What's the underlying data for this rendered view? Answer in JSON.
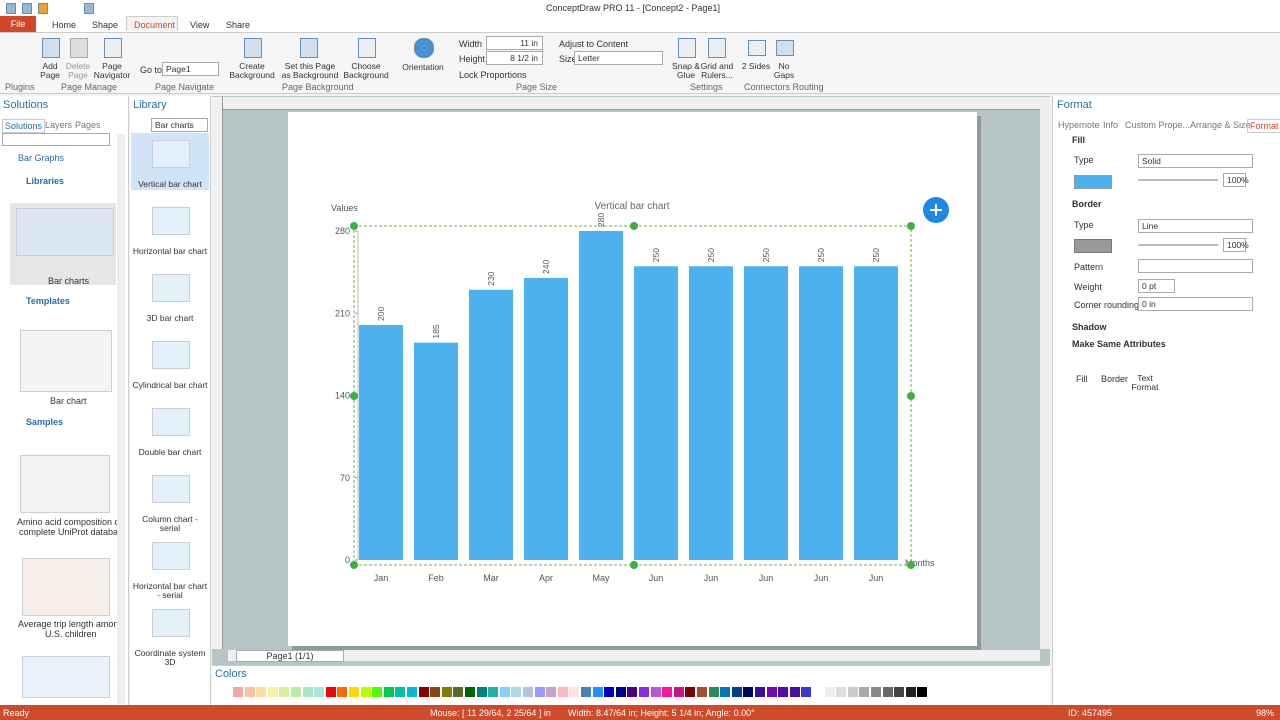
{
  "window_title": "ConceptDraw PRO 11 - [Concept2 - Page1]",
  "tabs": [
    "File",
    "Home",
    "Shape",
    "Document",
    "View",
    "Share"
  ],
  "ribbon": {
    "groups": [
      "Plugins",
      "Page Manage",
      "Page Navigate",
      "Page Background",
      "Page Size",
      "Settings",
      "Connectors Routing"
    ],
    "buttons": [
      "Add Page",
      "Delete Page",
      "Page Navigator",
      "Create Background",
      "Set this Page as Background",
      "Choose Background",
      "Orientation",
      "Snap & Glue",
      "Grid and Rulers...",
      "2 Sides",
      "No Gaps"
    ],
    "goto_label": "Go to:",
    "goto_value": "Page1",
    "width_label": "Width",
    "width_value": "11 in",
    "height_label": "Height",
    "height_value": "8 1/2 in",
    "lock": "Lock Proportions",
    "adjust": "Adjust to Content",
    "size_label": "Size",
    "size_value": "Letter"
  },
  "solutions": {
    "title": "Solutions",
    "tabs": [
      "Solutions",
      "Layers",
      "Pages"
    ],
    "tree": [
      "Bar Graphs",
      "Libraries",
      "Templates",
      "Samples"
    ],
    "items": [
      "Bar charts",
      "Bar chart",
      "Amino acid composition c",
      "complete UniProt databas",
      "Average trip length amon",
      "U.S. children"
    ]
  },
  "library": {
    "title": "Library",
    "dropdown": "Bar charts",
    "items": [
      "Vertical bar chart",
      "Horizontal bar chart",
      "3D bar chart",
      "Cylindrical bar chart",
      "Double bar chart",
      "Column chart - serial",
      "Horizontal bar chart - serial",
      "Coordinate system 3D"
    ]
  },
  "page_tab": "Page1 (1/1)",
  "colors_title": "Colors",
  "format": {
    "title": "Format",
    "tabs": [
      "Hypernote",
      "Info",
      "Custom Prope...",
      "Arrange & Size",
      "Format"
    ],
    "fill": {
      "header": "Fill",
      "type_label": "Type",
      "type_value": "Solid",
      "opacity": "100%"
    },
    "border": {
      "header": "Border",
      "type_label": "Type",
      "type_value": "Line",
      "opacity": "100%",
      "pattern_label": "Pattern",
      "weight_label": "Weight",
      "weight_value": "0 pt",
      "corner_label": "Corner rounding",
      "corner_value": "0 in"
    },
    "shadow": "Shadow",
    "same": "Make Same Attributes",
    "same_buttons": [
      "Fill",
      "Border",
      "Text Format"
    ]
  },
  "status": {
    "ready": "Ready",
    "mouse": "Mouse: [ 11 29/64, 2 25/64 ] in",
    "size": "Width: 8.47/64 in;  Height: 5 1/4 in;  Angle: 0.00°",
    "id": "ID: 457495",
    "zoom": "98%"
  },
  "chart_data": {
    "type": "bar",
    "title": "Vertical bar chart",
    "y_label": "Values",
    "x_label": "Months",
    "categories": [
      "Jan",
      "Feb",
      "Mar",
      "Apr",
      "May",
      "Jun",
      "Jun",
      "Jun",
      "Jun",
      "Jun"
    ],
    "values": [
      200,
      185,
      230,
      240,
      280,
      250,
      250,
      250,
      250,
      250
    ],
    "color": "#4cb1ef",
    "ylim": [
      0,
      280
    ],
    "yticks": [
      0,
      70,
      140,
      210,
      280
    ]
  }
}
